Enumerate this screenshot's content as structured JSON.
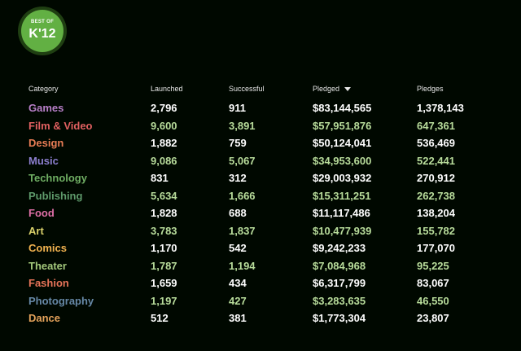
{
  "logo": {
    "top_text": "BEST OF",
    "main_text": "K'12"
  },
  "table": {
    "headers": {
      "category": "Category",
      "launched": "Launched",
      "successful": "Successful",
      "pledged": "Pledged",
      "pledges": "Pledges"
    },
    "sorted_by": "pledged",
    "rows": [
      {
        "category": "Games",
        "color": "#b77fc7",
        "launched": "2,796",
        "successful": "911",
        "pledged": "$83,144,565",
        "pledges": "1,378,143",
        "tone": "white"
      },
      {
        "category": "Film & Video",
        "color": "#e06060",
        "launched": "9,600",
        "successful": "3,891",
        "pledged": "$57,951,876",
        "pledges": "647,361",
        "tone": "green"
      },
      {
        "category": "Design",
        "color": "#e87d55",
        "launched": "1,882",
        "successful": "759",
        "pledged": "$50,124,041",
        "pledges": "536,469",
        "tone": "white"
      },
      {
        "category": "Music",
        "color": "#8c7fcf",
        "launched": "9,086",
        "successful": "5,067",
        "pledged": "$34,953,600",
        "pledges": "522,441",
        "tone": "green"
      },
      {
        "category": "Technology",
        "color": "#6fae63",
        "launched": "831",
        "successful": "312",
        "pledged": "$29,003,932",
        "pledges": "270,912",
        "tone": "white"
      },
      {
        "category": "Publishing",
        "color": "#5e9a6b",
        "launched": "5,634",
        "successful": "1,666",
        "pledged": "$15,311,251",
        "pledges": "262,738",
        "tone": "green"
      },
      {
        "category": "Food",
        "color": "#de6fa6",
        "launched": "1,828",
        "successful": "688",
        "pledged": "$11,117,486",
        "pledges": "138,204",
        "tone": "white"
      },
      {
        "category": "Art",
        "color": "#d9d06a",
        "launched": "3,783",
        "successful": "1,837",
        "pledged": "$10,477,939",
        "pledges": "155,782",
        "tone": "green"
      },
      {
        "category": "Comics",
        "color": "#f1b24f",
        "launched": "1,170",
        "successful": "542",
        "pledged": "$9,242,233",
        "pledges": "177,070",
        "tone": "white"
      },
      {
        "category": "Theater",
        "color": "#a3c87b",
        "launched": "1,787",
        "successful": "1,194",
        "pledged": "$7,084,968",
        "pledges": "95,225",
        "tone": "green"
      },
      {
        "category": "Fashion",
        "color": "#e67459",
        "launched": "1,659",
        "successful": "434",
        "pledged": "$6,317,799",
        "pledges": "83,067",
        "tone": "white"
      },
      {
        "category": "Photography",
        "color": "#6688a6",
        "launched": "1,197",
        "successful": "427",
        "pledged": "$3,283,635",
        "pledges": "46,550",
        "tone": "green"
      },
      {
        "category": "Dance",
        "color": "#e3a25a",
        "launched": "512",
        "successful": "381",
        "pledged": "$1,773,304",
        "pledges": "23,807",
        "tone": "white"
      }
    ]
  }
}
